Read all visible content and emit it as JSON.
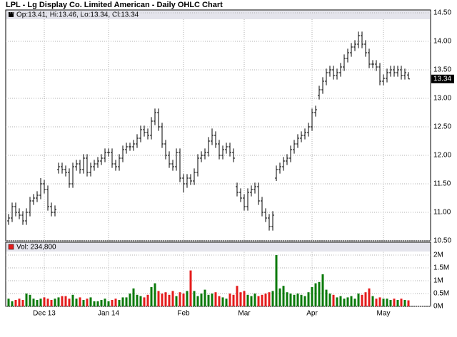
{
  "chart_data": {
    "type": "ohlc",
    "title": "LPL - Lg Display Co. Limited American - Daily OHLC Chart",
    "legend_text": "Op:13.41, Hi:13.46, Lo:13.34, Cl:13.34",
    "volume_legend": "Vol: 234,800",
    "bar_color": "#000000",
    "up_color": "#0a7a0a",
    "down_color": "#e41b1b",
    "legend_color": "#000000",
    "volume_legend_color": "#e41b1b",
    "categories": [
      null,
      null,
      null,
      null,
      null,
      null,
      null,
      null,
      null,
      null,
      "Dec 13",
      null,
      null,
      null,
      null,
      null,
      null,
      null,
      null,
      null,
      null,
      null,
      null,
      null,
      null,
      null,
      null,
      null,
      "Jan 14",
      null,
      null,
      null,
      null,
      null,
      null,
      null,
      null,
      null,
      null,
      null,
      null,
      null,
      null,
      null,
      null,
      null,
      null,
      null,
      null,
      "Feb",
      null,
      null,
      null,
      null,
      null,
      null,
      null,
      null,
      null,
      null,
      null,
      null,
      null,
      null,
      null,
      null,
      "Mar",
      null,
      null,
      null,
      null,
      null,
      null,
      null,
      null,
      null,
      null,
      null,
      null,
      null,
      null,
      null,
      null,
      null,
      null,
      "Apr",
      null,
      null,
      null,
      null,
      null,
      null,
      null,
      null,
      null,
      null,
      null,
      null,
      null,
      null,
      null,
      null,
      null,
      null,
      null,
      "May",
      null,
      null,
      null,
      null,
      null,
      null,
      null
    ],
    "ohlc": [
      [
        10.85,
        10.97,
        10.78,
        10.9
      ],
      [
        10.9,
        11.17,
        10.83,
        11.1
      ],
      [
        11.1,
        11.17,
        10.93,
        11.0
      ],
      [
        11.0,
        11.07,
        10.88,
        10.95
      ],
      [
        10.95,
        11.02,
        10.78,
        10.85
      ],
      [
        10.85,
        11.07,
        10.78,
        11.0
      ],
      [
        11.0,
        11.27,
        10.93,
        11.2
      ],
      [
        11.2,
        11.32,
        11.13,
        11.25
      ],
      [
        11.25,
        11.37,
        11.18,
        11.3
      ],
      [
        11.3,
        11.6,
        11.23,
        11.5
      ],
      [
        11.5,
        11.57,
        11.33,
        11.4
      ],
      [
        11.4,
        11.47,
        11.03,
        11.1
      ],
      [
        11.1,
        11.17,
        10.93,
        11.0
      ],
      [
        11.0,
        11.12,
        10.93,
        11.05
      ],
      [
        11.75,
        11.87,
        11.68,
        11.8
      ],
      [
        11.8,
        11.87,
        11.68,
        11.75
      ],
      [
        11.75,
        11.82,
        11.63,
        11.7
      ],
      [
        11.7,
        11.77,
        11.43,
        11.5
      ],
      [
        11.5,
        11.87,
        11.43,
        11.8
      ],
      [
        11.8,
        11.92,
        11.73,
        11.85
      ],
      [
        11.85,
        11.92,
        11.68,
        11.75
      ],
      [
        11.75,
        12.02,
        11.68,
        11.95
      ],
      [
        11.95,
        12.02,
        11.63,
        11.7
      ],
      [
        11.7,
        11.87,
        11.63,
        11.8
      ],
      [
        11.8,
        11.92,
        11.73,
        11.85
      ],
      [
        11.85,
        11.97,
        11.78,
        11.9
      ],
      [
        11.9,
        12.02,
        11.83,
        11.95
      ],
      [
        11.95,
        12.12,
        11.88,
        12.05
      ],
      [
        12.05,
        12.12,
        11.98,
        12.05
      ],
      [
        12.05,
        12.12,
        11.78,
        11.85
      ],
      [
        11.85,
        11.92,
        11.73,
        11.8
      ],
      [
        11.8,
        12.02,
        11.73,
        11.95
      ],
      [
        11.95,
        12.17,
        11.88,
        12.1
      ],
      [
        12.1,
        12.22,
        12.03,
        12.15
      ],
      [
        12.15,
        12.22,
        12.08,
        12.15
      ],
      [
        12.15,
        12.27,
        12.08,
        12.2
      ],
      [
        12.2,
        12.37,
        12.13,
        12.3
      ],
      [
        12.3,
        12.52,
        12.23,
        12.45
      ],
      [
        12.45,
        12.52,
        12.33,
        12.4
      ],
      [
        12.4,
        12.47,
        12.28,
        12.35
      ],
      [
        12.35,
        12.67,
        12.28,
        12.6
      ],
      [
        12.6,
        12.82,
        12.53,
        12.75
      ],
      [
        12.75,
        12.82,
        12.43,
        12.5
      ],
      [
        12.5,
        12.57,
        12.13,
        12.2
      ],
      [
        12.2,
        12.27,
        11.93,
        12.0
      ],
      [
        12.0,
        12.07,
        11.78,
        11.85
      ],
      [
        11.85,
        11.92,
        11.73,
        11.8
      ],
      [
        11.8,
        12.12,
        11.73,
        12.05
      ],
      [
        12.05,
        12.12,
        11.53,
        11.6
      ],
      [
        11.6,
        11.67,
        11.35,
        11.5
      ],
      [
        11.5,
        11.67,
        11.43,
        11.6
      ],
      [
        11.6,
        11.67,
        11.48,
        11.55
      ],
      [
        11.55,
        11.77,
        11.48,
        11.7
      ],
      [
        11.7,
        12.02,
        11.63,
        11.95
      ],
      [
        11.95,
        12.07,
        11.88,
        12.0
      ],
      [
        12.0,
        12.12,
        11.93,
        12.05
      ],
      [
        12.05,
        12.32,
        11.98,
        12.25
      ],
      [
        12.25,
        12.47,
        12.18,
        12.35
      ],
      [
        12.35,
        12.42,
        12.13,
        12.2
      ],
      [
        12.2,
        12.27,
        11.93,
        12.0
      ],
      [
        12.0,
        12.17,
        11.93,
        12.1
      ],
      [
        12.1,
        12.22,
        12.03,
        12.15
      ],
      [
        12.15,
        12.22,
        11.98,
        12.05
      ],
      [
        12.05,
        12.12,
        11.88,
        11.95
      ],
      [
        11.45,
        11.52,
        11.28,
        11.35
      ],
      [
        11.35,
        11.42,
        11.18,
        11.25
      ],
      [
        11.25,
        11.32,
        11.03,
        11.1
      ],
      [
        11.1,
        11.42,
        11.03,
        11.35
      ],
      [
        11.35,
        11.47,
        11.28,
        11.4
      ],
      [
        11.4,
        11.52,
        11.33,
        11.45
      ],
      [
        11.45,
        11.52,
        11.13,
        11.2
      ],
      [
        11.2,
        11.27,
        10.93,
        11.0
      ],
      [
        11.0,
        11.07,
        10.83,
        10.9
      ],
      [
        10.9,
        10.97,
        10.68,
        10.75
      ],
      [
        10.75,
        11.02,
        10.68,
        10.95
      ],
      [
        11.6,
        11.82,
        11.55,
        11.75
      ],
      [
        11.75,
        11.87,
        11.68,
        11.8
      ],
      [
        11.8,
        11.97,
        11.73,
        11.9
      ],
      [
        11.9,
        12.02,
        11.83,
        11.95
      ],
      [
        11.95,
        12.17,
        11.88,
        12.1
      ],
      [
        12.1,
        12.27,
        12.03,
        12.2
      ],
      [
        12.2,
        12.37,
        12.13,
        12.3
      ],
      [
        12.3,
        12.42,
        12.23,
        12.35
      ],
      [
        12.35,
        12.47,
        12.28,
        12.4
      ],
      [
        12.4,
        12.57,
        12.33,
        12.5
      ],
      [
        12.5,
        12.82,
        12.43,
        12.75
      ],
      [
        12.75,
        12.87,
        12.68,
        12.8
      ],
      [
        13.05,
        13.22,
        12.98,
        13.15
      ],
      [
        13.15,
        13.37,
        13.08,
        13.3
      ],
      [
        13.3,
        13.52,
        13.23,
        13.45
      ],
      [
        13.45,
        13.57,
        13.38,
        13.5
      ],
      [
        13.5,
        13.57,
        13.33,
        13.4
      ],
      [
        13.4,
        13.52,
        13.33,
        13.45
      ],
      [
        13.45,
        13.62,
        13.38,
        13.55
      ],
      [
        13.55,
        13.77,
        13.48,
        13.7
      ],
      [
        13.7,
        13.87,
        13.63,
        13.8
      ],
      [
        13.8,
        13.97,
        13.73,
        13.9
      ],
      [
        13.9,
        14.02,
        13.83,
        13.95
      ],
      [
        13.95,
        14.17,
        13.88,
        14.1
      ],
      [
        14.1,
        14.17,
        13.88,
        13.95
      ],
      [
        13.95,
        14.02,
        13.73,
        13.8
      ],
      [
        13.8,
        13.87,
        13.53,
        13.6
      ],
      [
        13.6,
        13.67,
        13.53,
        13.6
      ],
      [
        13.6,
        13.67,
        13.48,
        13.55
      ],
      [
        13.55,
        13.62,
        13.23,
        13.3
      ],
      [
        13.3,
        13.42,
        13.23,
        13.35
      ],
      [
        13.35,
        13.52,
        13.28,
        13.45
      ],
      [
        13.45,
        13.57,
        13.38,
        13.5
      ],
      [
        13.5,
        13.57,
        13.38,
        13.45
      ],
      [
        13.45,
        13.57,
        13.38,
        13.5
      ],
      [
        13.5,
        13.57,
        13.33,
        13.4
      ],
      [
        13.4,
        13.52,
        13.33,
        13.45
      ],
      [
        13.41,
        13.46,
        13.34,
        13.34
      ]
    ],
    "volume": [
      0.3,
      0.2,
      0.25,
      0.3,
      0.25,
      0.5,
      0.45,
      0.3,
      0.25,
      0.3,
      0.35,
      0.3,
      0.25,
      0.3,
      0.35,
      0.4,
      0.4,
      0.3,
      0.45,
      0.3,
      0.35,
      0.25,
      0.3,
      0.35,
      0.2,
      0.2,
      0.25,
      0.3,
      0.2,
      0.25,
      0.3,
      0.25,
      0.35,
      0.35,
      0.5,
      0.7,
      0.45,
      0.4,
      0.35,
      0.45,
      0.75,
      0.9,
      0.6,
      0.5,
      0.55,
      0.45,
      0.6,
      0.4,
      0.55,
      0.5,
      0.6,
      1.4,
      0.6,
      0.4,
      0.5,
      0.65,
      0.45,
      0.5,
      0.55,
      0.4,
      0.35,
      0.3,
      0.5,
      0.45,
      0.8,
      0.55,
      0.6,
      0.45,
      0.4,
      0.5,
      0.4,
      0.45,
      0.5,
      0.55,
      0.6,
      2.0,
      0.7,
      0.8,
      0.55,
      0.5,
      0.45,
      0.5,
      0.45,
      0.4,
      0.55,
      0.75,
      0.9,
      0.95,
      1.25,
      0.65,
      0.5,
      0.45,
      0.35,
      0.4,
      0.3,
      0.35,
      0.4,
      0.3,
      0.5,
      0.45,
      0.55,
      0.7,
      0.4,
      0.3,
      0.35,
      0.3,
      0.3,
      0.25,
      0.3,
      0.25,
      0.3,
      0.25,
      0.2348
    ],
    "ylim": [
      10.5,
      14.55
    ],
    "yticks": [
      {
        "value": 10.5,
        "label": "10.50"
      },
      {
        "value": 11,
        "label": "11.00"
      },
      {
        "value": 11.5,
        "label": "11.50"
      },
      {
        "value": 12,
        "label": "12.00"
      },
      {
        "value": 12.5,
        "label": "12.50"
      },
      {
        "value": 13,
        "label": "13.00"
      },
      {
        "value": 13.5,
        "label": "13.50"
      },
      {
        "value": 14,
        "label": "14.00"
      },
      {
        "value": 14.5,
        "label": "14.50"
      }
    ],
    "last_price": 13.34,
    "vol_ylim": [
      0,
      2.4
    ],
    "vol_yticks": [
      {
        "value": 0,
        "label": "0M"
      },
      {
        "value": 0.5,
        "label": "0.5M"
      },
      {
        "value": 1,
        "label": "1M"
      },
      {
        "value": 1.5,
        "label": "1.5M"
      },
      {
        "value": 2,
        "label": "2M"
      }
    ],
    "grid": true
  }
}
